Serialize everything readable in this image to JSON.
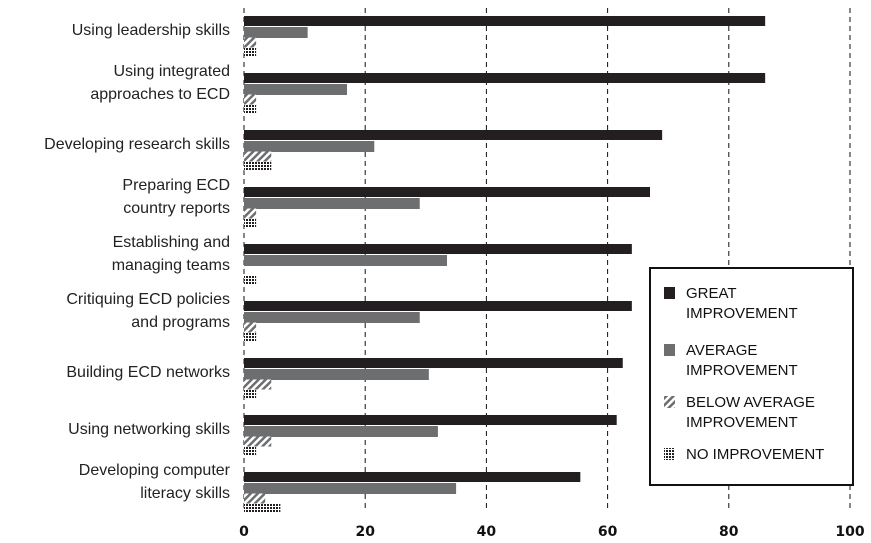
{
  "chart_data": {
    "type": "bar",
    "orientation": "horizontal",
    "categories": [
      [
        "Using leadership skills"
      ],
      [
        "Using integrated",
        "approaches to ECD"
      ],
      [
        "Developing research skills"
      ],
      [
        "Preparing ECD",
        "country reports"
      ],
      [
        "Establishing and",
        "managing teams"
      ],
      [
        "Critiquing ECD policies",
        "and programs"
      ],
      [
        "Building ECD networks"
      ],
      [
        "Using networking skills"
      ],
      [
        "Developing computer",
        "literacy skills"
      ]
    ],
    "series": [
      {
        "name": [
          "GREAT",
          "IMPROVEMENT"
        ],
        "color": "#231f20",
        "pattern": "solid",
        "values": [
          86,
          86,
          69,
          67,
          64,
          64,
          62.5,
          61.5,
          55.5
        ]
      },
      {
        "name": [
          "AVERAGE",
          "IMPROVEMENT"
        ],
        "color": "#6d6e70",
        "pattern": "solid",
        "values": [
          10.5,
          17,
          21.5,
          29,
          33.5,
          29,
          30.5,
          32,
          35
        ]
      },
      {
        "name": [
          "BELOW AVERAGE",
          "IMPROVEMENT"
        ],
        "color": "#6d6e70",
        "pattern": "hatch",
        "values": [
          2,
          2,
          4.5,
          2,
          0,
          2,
          4.5,
          4.5,
          3.5
        ]
      },
      {
        "name": [
          "NO IMPROVEMENT"
        ],
        "color": "#231f20",
        "pattern": "grid",
        "values": [
          2,
          2,
          4.5,
          2,
          2,
          2,
          2,
          2,
          6
        ]
      }
    ],
    "xlim": [
      0,
      100
    ],
    "xticks": [
      "0",
      "20",
      "40",
      "60",
      "80",
      "100"
    ],
    "xtick_values": [
      0,
      20,
      40,
      60,
      80,
      100
    ],
    "grid": "vertical-dashed",
    "legend_position": "right"
  }
}
